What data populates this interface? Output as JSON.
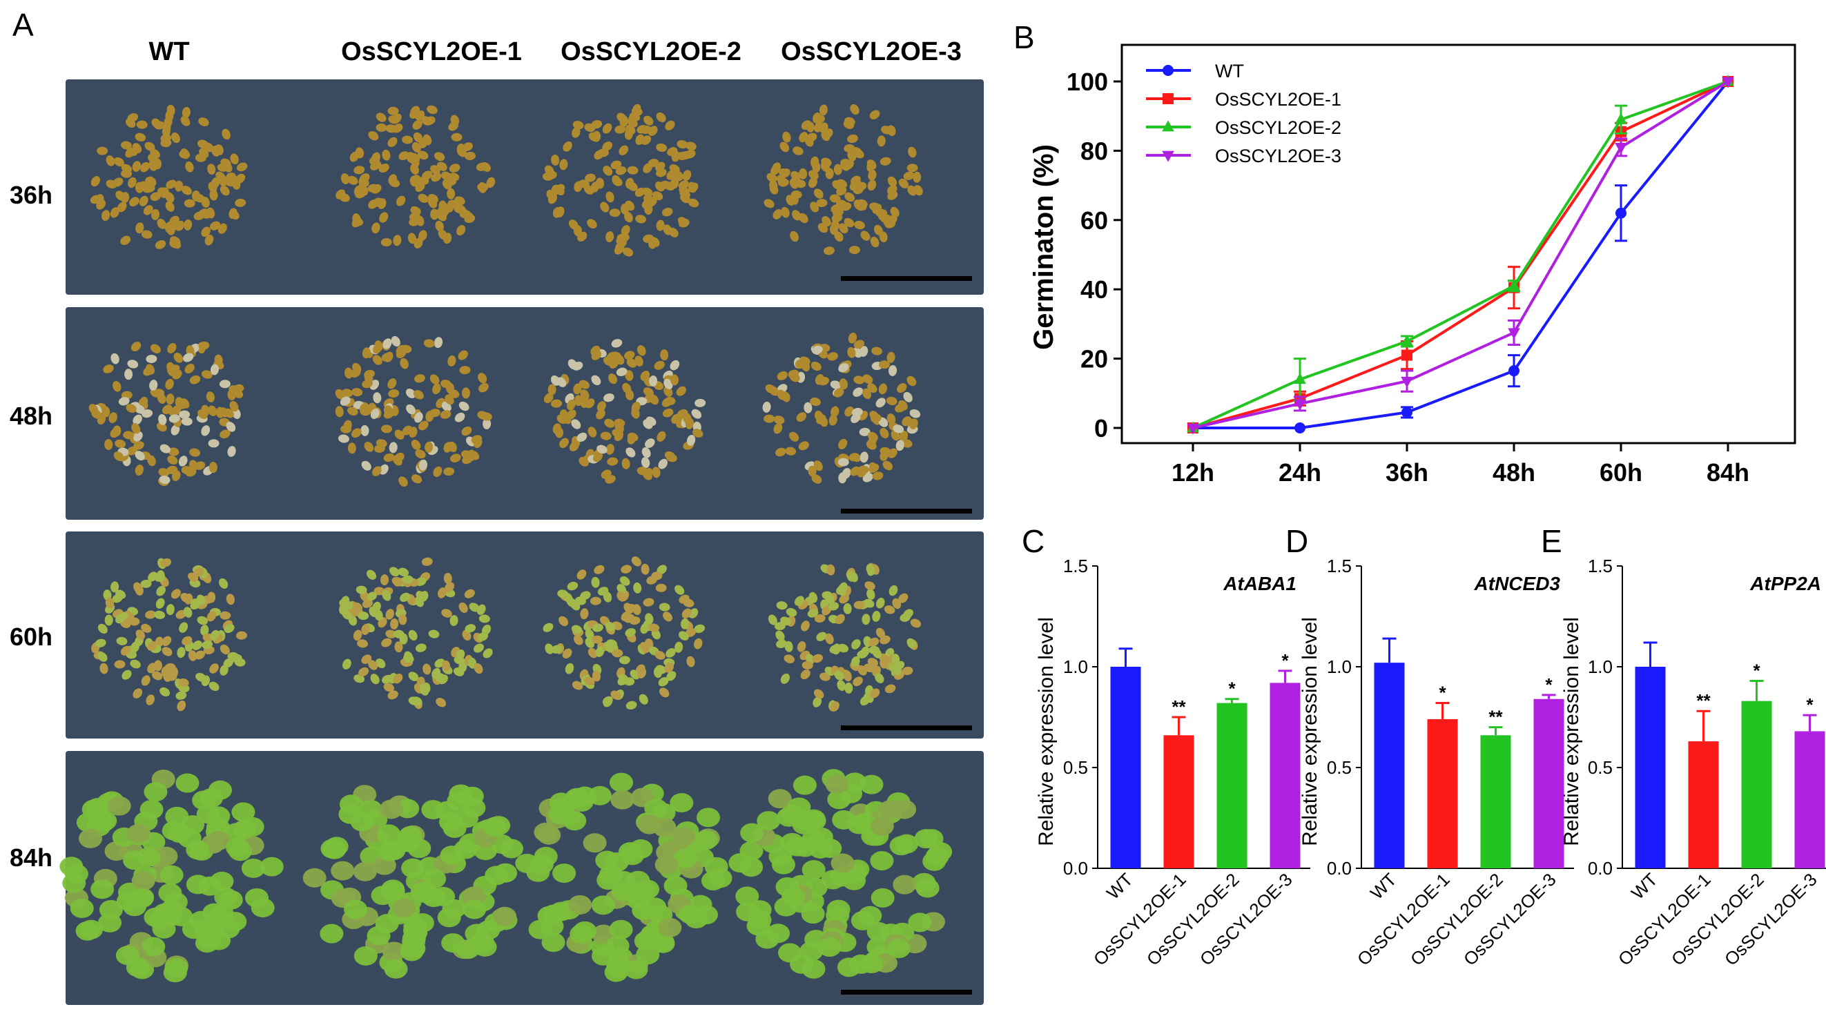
{
  "panel_labels": [
    "A",
    "B",
    "C",
    "D",
    "E"
  ],
  "photo_panel": {
    "columns": [
      "WT",
      "OsSCYL2OE-1",
      "OsSCYL2OE-2",
      "OsSCYL2OE-3"
    ],
    "rows": [
      "36h",
      "48h",
      "60h",
      "84h"
    ],
    "colors": {
      "plate": "#3a4a5e",
      "seed": "#b08a2e",
      "seedling": "#7bbf3a"
    }
  },
  "chart_data": [
    {
      "type": "line",
      "panel": "B",
      "title": "",
      "categories": [
        "12h",
        "24h",
        "36h",
        "48h",
        "60h",
        "84h"
      ],
      "xlabel": "",
      "ylabel": "Germinaton (%)",
      "ylim": [
        0,
        100
      ],
      "yticks": [
        "0",
        "20",
        "40",
        "60",
        "80",
        "100"
      ],
      "legend_position": "top-left",
      "grid": false,
      "series": [
        {
          "name": "WT",
          "color": "#1a1aff",
          "marker": "circle",
          "values": [
            0,
            0,
            4.5,
            16.5,
            62,
            100
          ],
          "errors": [
            0,
            0,
            1.5,
            4.5,
            8,
            0
          ]
        },
        {
          "name": "OsSCYL2OE-1",
          "color": "#ff1a1a",
          "marker": "square",
          "values": [
            0,
            8.5,
            21,
            40.5,
            85.5,
            100
          ],
          "errors": [
            0,
            2,
            4,
            6,
            2.5,
            0
          ]
        },
        {
          "name": "OsSCYL2OE-2",
          "color": "#22c422",
          "marker": "triangle-up",
          "values": [
            0,
            14,
            25,
            41,
            89,
            100
          ],
          "errors": [
            0,
            6,
            1.5,
            1.5,
            4,
            0
          ]
        },
        {
          "name": "OsSCYL2OE-3",
          "color": "#b020e0",
          "marker": "triangle-down",
          "values": [
            0,
            7,
            13.5,
            27.5,
            81,
            100
          ],
          "errors": [
            0,
            2,
            3,
            3.5,
            2.5,
            0
          ]
        }
      ]
    },
    {
      "type": "bar",
      "panel": "C",
      "title": "AtABA1",
      "categories": [
        "WT",
        "OsSCYL2OE-1",
        "OsSCYL2OE-2",
        "OsSCYL2OE-3"
      ],
      "values": [
        1.0,
        0.66,
        0.82,
        0.92
      ],
      "errors": [
        0.09,
        0.09,
        0.02,
        0.06
      ],
      "significance": [
        "",
        "**",
        "*",
        "*"
      ],
      "colors": [
        "#1a1aff",
        "#ff1a1a",
        "#22c422",
        "#b020e0"
      ],
      "xlabel": "",
      "ylabel": "Relative expression level",
      "ylim": [
        0,
        1.5
      ],
      "yticks": [
        "0.0",
        "0.5",
        "1.0",
        "1.5"
      ]
    },
    {
      "type": "bar",
      "panel": "D",
      "title": "AtNCED3",
      "categories": [
        "WT",
        "OsSCYL2OE-1",
        "OsSCYL2OE-2",
        "OsSCYL2OE-3"
      ],
      "values": [
        1.02,
        0.74,
        0.66,
        0.84
      ],
      "errors": [
        0.12,
        0.08,
        0.04,
        0.02
      ],
      "significance": [
        "",
        "*",
        "**",
        "*"
      ],
      "colors": [
        "#1a1aff",
        "#ff1a1a",
        "#22c422",
        "#b020e0"
      ],
      "xlabel": "",
      "ylabel": "Relative expression level",
      "ylim": [
        0,
        1.5
      ],
      "yticks": [
        "0.0",
        "0.5",
        "1.0",
        "1.5"
      ]
    },
    {
      "type": "bar",
      "panel": "E",
      "title": "AtPP2A",
      "categories": [
        "WT",
        "OsSCYL2OE-1",
        "OsSCYL2OE-2",
        "OsSCYL2OE-3"
      ],
      "values": [
        1.0,
        0.63,
        0.83,
        0.68
      ],
      "errors": [
        0.12,
        0.15,
        0.1,
        0.08
      ],
      "significance": [
        "",
        "**",
        "*",
        "*"
      ],
      "colors": [
        "#1a1aff",
        "#ff1a1a",
        "#22c422",
        "#b020e0"
      ],
      "xlabel": "",
      "ylabel": "Relative expression level",
      "ylim": [
        0,
        1.5
      ],
      "yticks": [
        "0.0",
        "0.5",
        "1.0",
        "1.5"
      ]
    }
  ]
}
